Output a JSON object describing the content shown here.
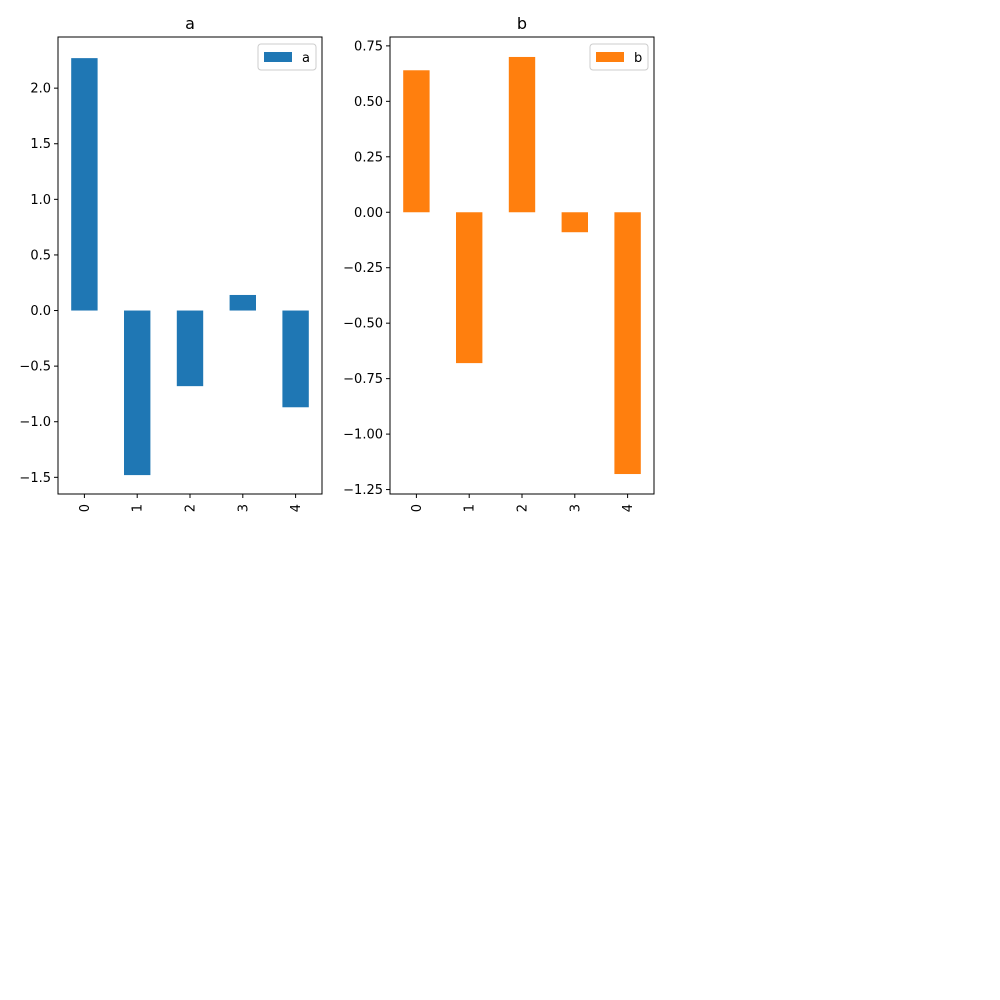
{
  "chart_data": [
    {
      "type": "bar",
      "title": "a",
      "categories": [
        "0",
        "1",
        "2",
        "3",
        "4"
      ],
      "series": [
        {
          "name": "a",
          "values": [
            2.27,
            -1.48,
            -0.68,
            0.14,
            -0.87
          ],
          "color": "#1f77b4"
        }
      ],
      "ylim": [
        -1.65,
        2.46
      ],
      "yticks": [
        -1.5,
        -1.0,
        -0.5,
        0.0,
        0.5,
        1.0,
        1.5,
        2.0
      ],
      "ytick_labels": [
        "−1.5",
        "−1.0",
        "−0.5",
        "0.0",
        "0.5",
        "1.0",
        "1.5",
        "2.0"
      ],
      "grid": false,
      "legend": "top-right"
    },
    {
      "type": "bar",
      "title": "b",
      "categories": [
        "0",
        "1",
        "2",
        "3",
        "4"
      ],
      "series": [
        {
          "name": "b",
          "values": [
            0.64,
            -0.68,
            0.7,
            -0.09,
            -1.18
          ],
          "color": "#ff7f0e"
        }
      ],
      "ylim": [
        -1.27,
        0.79
      ],
      "yticks": [
        -1.25,
        -1.0,
        -0.75,
        -0.5,
        -0.25,
        0.0,
        0.25,
        0.5,
        0.75
      ],
      "ytick_labels": [
        "−1.25",
        "−1.00",
        "−0.75",
        "−0.50",
        "−0.25",
        "0.00",
        "0.25",
        "0.50",
        "0.75"
      ],
      "grid": false,
      "legend": "top-right"
    }
  ]
}
